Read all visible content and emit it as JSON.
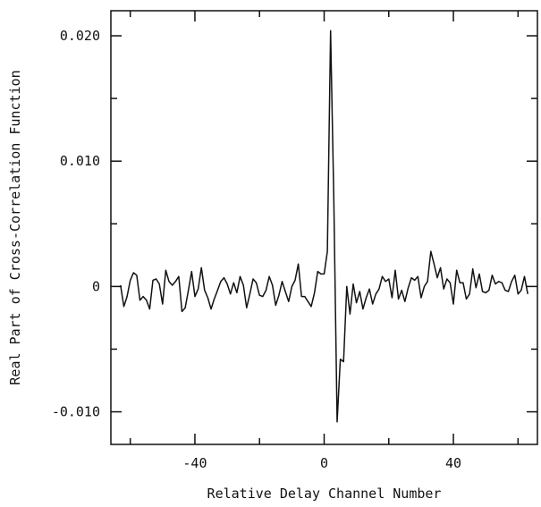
{
  "chart_data": {
    "type": "line",
    "title": "",
    "xlabel": "Relative Delay Channel Number",
    "ylabel": "Real Part of Cross-Correlation Function",
    "xlim": [
      -66,
      66
    ],
    "ylim": [
      -0.0126,
      0.022
    ],
    "x_ticks_labeled": [
      -40,
      0,
      40
    ],
    "x_ticks_minor": [
      -60,
      -20,
      20,
      60
    ],
    "x_tick_labels": [
      "-40",
      "0",
      "40"
    ],
    "y_ticks_labeled": [
      0.02,
      0.01,
      0,
      -0.01
    ],
    "y_ticks_minor": [
      0.015,
      0.005,
      -0.005
    ],
    "y_tick_labels": [
      "0.020",
      "0.010",
      "0",
      "-0.010"
    ],
    "grid": false,
    "series": [
      {
        "x": [
          -63,
          -62,
          -61,
          -60,
          -59,
          -58,
          -57,
          -56,
          -55,
          -54,
          -53,
          -52,
          -51,
          -50,
          -49,
          -48,
          -47,
          -46,
          -45,
          -44,
          -43,
          -42,
          -41,
          -40,
          -39,
          -38,
          -37,
          -36,
          -35,
          -34,
          -33,
          -32,
          -31,
          -30,
          -29,
          -28,
          -27,
          -26,
          -25,
          -24,
          -23,
          -22,
          -21,
          -20,
          -19,
          -18,
          -17,
          -16,
          -15,
          -14,
          -13,
          -12,
          -11,
          -10,
          -9,
          -8,
          -7,
          -6,
          -5,
          -4,
          -3,
          -2,
          -1,
          0,
          1,
          2,
          3,
          4,
          5,
          6,
          7,
          8,
          9,
          10,
          11,
          12,
          13,
          14,
          15,
          16,
          17,
          18,
          19,
          20,
          21,
          22,
          23,
          24,
          25,
          26,
          27,
          28,
          29,
          30,
          31,
          32,
          33,
          34,
          35,
          36,
          37,
          38,
          39,
          40,
          41,
          42,
          43,
          44,
          45,
          46,
          47,
          48,
          49,
          50,
          51,
          52,
          53,
          54,
          55,
          56,
          57,
          58,
          59,
          60,
          61,
          62,
          63
        ],
        "y": [
          0.0001,
          -0.0016,
          -0.0008,
          0.0005,
          0.0011,
          0.0009,
          -0.0011,
          -0.0008,
          -0.0011,
          -0.0018,
          0.0005,
          0.0006,
          0.0002,
          -0.0014,
          0.0013,
          0.0004,
          0.0001,
          0.0004,
          0.0008,
          -0.002,
          -0.0017,
          -0.0003,
          0.0012,
          -0.0008,
          -0.0002,
          0.0015,
          -0.0003,
          -0.0009,
          -0.0018,
          -0.001,
          -0.0003,
          0.0004,
          0.0007,
          0.0002,
          -0.0006,
          0.0003,
          -0.0005,
          0.0008,
          0.0001,
          -0.0017,
          -0.0006,
          0.0006,
          0.0003,
          -0.0007,
          -0.0008,
          -0.0003,
          0.0008,
          0.0001,
          -0.0015,
          -0.0007,
          0.0004,
          -0.0004,
          -0.0012,
          0.0,
          0.0005,
          0.0018,
          -0.0008,
          -0.0008,
          -0.0012,
          -0.0016,
          -0.0005,
          0.0012,
          0.001,
          0.001,
          0.0028,
          0.0204,
          0.007,
          -0.0108,
          -0.0058,
          -0.006,
          0.0,
          -0.0022,
          0.0002,
          -0.0013,
          -0.0004,
          -0.0018,
          -0.0009,
          -0.0002,
          -0.0014,
          -0.0006,
          -0.0002,
          0.0008,
          0.0004,
          0.0006,
          -0.0009,
          0.0013,
          -0.001,
          -0.0003,
          -0.0012,
          -0.0001,
          0.0007,
          0.0005,
          0.0008,
          -0.0009,
          0.0,
          0.0004,
          0.0028,
          0.0018,
          0.0007,
          0.0015,
          -0.0002,
          0.0006,
          0.0003,
          -0.0014,
          0.0013,
          0.0003,
          0.0003,
          -0.001,
          -0.0006,
          0.0014,
          -0.0001,
          0.001,
          -0.0004,
          -0.0005,
          -0.0003,
          0.0009,
          0.0002,
          0.0004,
          0.0003,
          -0.0003,
          -0.0004,
          0.0004,
          0.0009,
          -0.0006,
          -0.0003,
          0.0008,
          -0.0006
        ]
      }
    ]
  }
}
